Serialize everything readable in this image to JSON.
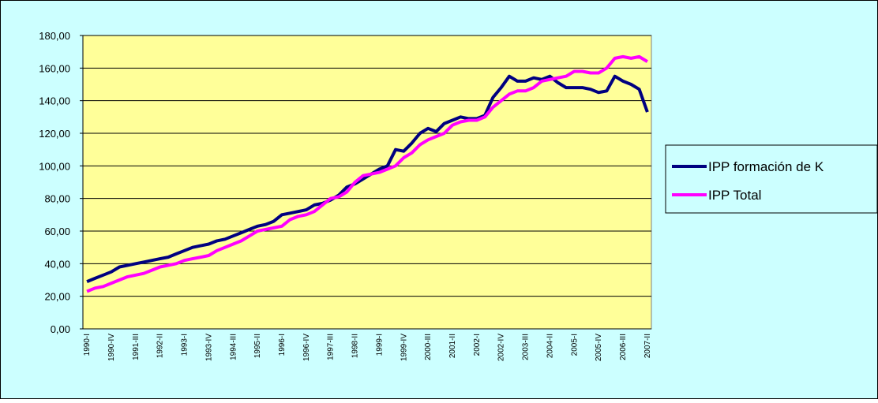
{
  "chart_data": {
    "type": "line",
    "categories": [
      "1990-I",
      null,
      null,
      "1990-IV",
      null,
      null,
      "1991-III",
      null,
      null,
      "1992-II",
      null,
      null,
      "1993-I",
      null,
      null,
      "1993-IV",
      null,
      null,
      "1994-III",
      null,
      null,
      "1995-II",
      null,
      null,
      "1996-I",
      null,
      null,
      "1996-IV",
      null,
      null,
      "1997-III",
      null,
      null,
      "1998-II",
      null,
      null,
      "1999-I",
      null,
      null,
      "1999-IV",
      null,
      null,
      "2000-III",
      null,
      null,
      "2001-II",
      null,
      null,
      "2002-I",
      null,
      null,
      "2002-IV",
      null,
      null,
      "2003-III",
      null,
      null,
      "2004-II",
      null,
      null,
      "2005-I",
      null,
      null,
      "2005-IV",
      null,
      null,
      "2006-III",
      null,
      null,
      "2007-II"
    ],
    "series": [
      {
        "name": "IPP formación de K",
        "color": "#000080",
        "values": [
          29,
          31,
          33,
          35,
          38,
          39,
          40,
          41,
          42,
          43,
          44,
          46,
          48,
          50,
          51,
          52,
          54,
          55,
          57,
          59,
          61,
          63,
          64,
          66,
          70,
          71,
          72,
          73,
          76,
          77,
          79,
          82,
          87,
          89,
          92,
          95,
          98,
          100,
          110,
          109,
          114,
          120,
          123,
          121,
          126,
          128,
          130,
          129,
          129,
          131,
          142,
          148,
          155,
          152,
          152,
          154,
          153,
          155,
          151,
          148,
          148,
          148,
          147,
          145,
          146,
          155,
          152,
          150,
          147,
          133
        ]
      },
      {
        "name": "IPP Total",
        "color": "#ff00ff",
        "values": [
          23,
          25,
          26,
          28,
          30,
          32,
          33,
          34,
          36,
          38,
          39,
          40,
          42,
          43,
          44,
          45,
          48,
          50,
          52,
          54,
          57,
          60,
          61,
          62,
          63,
          67,
          69,
          70,
          72,
          76,
          80,
          81,
          84,
          90,
          94,
          95,
          96,
          98,
          100,
          105,
          108,
          113,
          116,
          118,
          120,
          125,
          127,
          128,
          128,
          130,
          136,
          140,
          144,
          146,
          146,
          148,
          152,
          153,
          154,
          155,
          158,
          158,
          157,
          157,
          160,
          166,
          167,
          166,
          167,
          164
        ]
      }
    ],
    "ylim": [
      0,
      180
    ],
    "yticks": [
      {
        "value": 0,
        "label": "0,00"
      },
      {
        "value": 20,
        "label": "20,00"
      },
      {
        "value": 40,
        "label": "40,00"
      },
      {
        "value": 60,
        "label": "60,00"
      },
      {
        "value": 80,
        "label": "80,00"
      },
      {
        "value": 100,
        "label": "100,00"
      },
      {
        "value": 120,
        "label": "120,00"
      },
      {
        "value": 140,
        "label": "140,00"
      },
      {
        "value": 160,
        "label": "160,00"
      },
      {
        "value": 180,
        "label": "180,00"
      }
    ],
    "grid": true,
    "legend": "right"
  }
}
